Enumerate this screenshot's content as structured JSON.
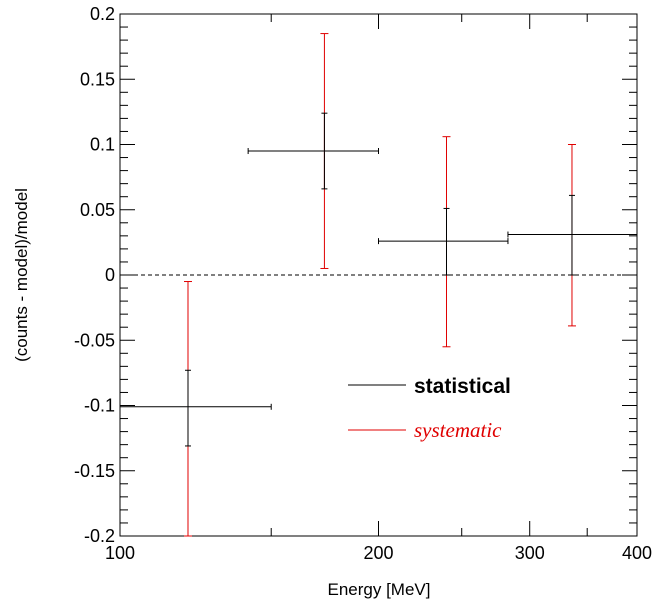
{
  "chart_data": {
    "type": "scatter",
    "title": "",
    "xlabel": "Energy [MeV]",
    "ylabel": "(counts - model)/model",
    "xscale": "log",
    "xlim": [
      100,
      400
    ],
    "ylim": [
      -0.2,
      0.2
    ],
    "x_ticks": [
      100,
      200,
      300,
      400
    ],
    "x_tick_labels": [
      "100",
      "200",
      "300",
      "400"
    ],
    "y_ticks": [
      -0.2,
      -0.15,
      -0.1,
      -0.05,
      0,
      0.05,
      0.1,
      0.15,
      0.2
    ],
    "y_tick_labels": [
      "-0.2",
      "-0.15",
      "-0.1",
      "-0.05",
      "0",
      "0.05",
      "0.1",
      "0.15",
      "0.2"
    ],
    "reference_line": {
      "y": 0,
      "style": "dashed"
    },
    "legend": {
      "position": "lower-right",
      "entries": [
        {
          "label": "statistical",
          "color": "#000000"
        },
        {
          "label": "systematic",
          "color": "#e00000"
        }
      ]
    },
    "series": [
      {
        "name": "statistical",
        "color": "#000000",
        "points": [
          {
            "x": 120,
            "x_low": 100,
            "x_high": 150,
            "y": -0.101,
            "y_low": -0.131,
            "y_high": -0.073
          },
          {
            "x": 173,
            "x_low": 141,
            "x_high": 200,
            "y": 0.095,
            "y_low": 0.066,
            "y_high": 0.124
          },
          {
            "x": 240,
            "x_low": 200,
            "x_high": 283,
            "y": 0.026,
            "y_low": 0,
            "y_high": 0.051
          },
          {
            "x": 336,
            "x_low": 283,
            "x_high": 400,
            "y": 0.031,
            "y_low": 0,
            "y_high": 0.061
          }
        ]
      },
      {
        "name": "systematic",
        "color": "#e00000",
        "points": [
          {
            "x": 120,
            "y": -0.101,
            "y_low": -0.2,
            "y_high": -0.005
          },
          {
            "x": 173,
            "y": 0.095,
            "y_low": 0.005,
            "y_high": 0.185
          },
          {
            "x": 240,
            "y": 0.026,
            "y_low": -0.055,
            "y_high": 0.106
          },
          {
            "x": 336,
            "y": 0.031,
            "y_low": -0.039,
            "y_high": 0.1
          }
        ]
      }
    ]
  }
}
